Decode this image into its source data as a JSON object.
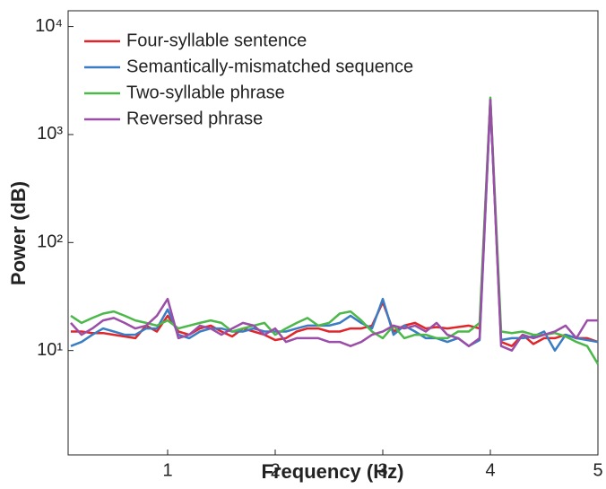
{
  "chart_data": {
    "type": "line",
    "xlabel": "Frequency (Hz)",
    "ylabel": "Power (dB)",
    "x": [
      0.1,
      0.2,
      0.3,
      0.4,
      0.5,
      0.6,
      0.7,
      0.8,
      0.9,
      1.0,
      1.1,
      1.2,
      1.3,
      1.4,
      1.5,
      1.6,
      1.7,
      1.8,
      1.9,
      2.0,
      2.1,
      2.2,
      2.3,
      2.4,
      2.5,
      2.6,
      2.7,
      2.8,
      2.9,
      3.0,
      3.1,
      3.2,
      3.3,
      3.4,
      3.5,
      3.6,
      3.7,
      3.8,
      3.9,
      4.0,
      4.1,
      4.2,
      4.3,
      4.4,
      4.5,
      4.6,
      4.7,
      4.8,
      4.9,
      5.0
    ],
    "series": [
      {
        "name": "Four-syllable sentence",
        "color": "#e0262a",
        "values": [
          15,
          15,
          14.5,
          14.5,
          14,
          13.5,
          13,
          17,
          15,
          21,
          15,
          14,
          16,
          17,
          15,
          13.5,
          16,
          15,
          14,
          12.5,
          13,
          15,
          16,
          16,
          15,
          15,
          16,
          16,
          17,
          28,
          15,
          17,
          18,
          16,
          16.5,
          16,
          16.5,
          17,
          16,
          2100,
          12,
          11,
          14,
          11.5,
          13,
          13,
          14,
          13,
          13,
          12
        ]
      },
      {
        "name": "Semantically-mismatched sequence",
        "color": "#3a7dc4",
        "values": [
          11,
          12,
          14,
          16,
          15,
          14,
          14,
          16,
          16,
          24,
          14,
          13,
          15,
          16,
          16,
          15,
          15,
          16,
          15,
          15,
          15,
          16,
          17,
          17,
          17,
          18,
          21,
          18,
          16,
          30,
          14,
          17,
          15,
          13,
          13,
          12,
          13,
          11,
          12.5,
          2000,
          12.5,
          13,
          13,
          13.5,
          15,
          10,
          14,
          13,
          12.5,
          12
        ]
      },
      {
        "name": "Two-syllable phrase",
        "color": "#4cb84a",
        "values": [
          21,
          18,
          20,
          22,
          23,
          21,
          19,
          18,
          17,
          19,
          16,
          17,
          18,
          19,
          18,
          15,
          16,
          17,
          18,
          14,
          16,
          18,
          20,
          17,
          18,
          22,
          23,
          19,
          15,
          13,
          17,
          13,
          14,
          14,
          13,
          13,
          15,
          15,
          18,
          2200,
          15,
          14.5,
          15,
          14,
          14,
          14.5,
          13.5,
          12,
          11,
          7.5
        ]
      },
      {
        "name": "Reversed phrase",
        "color": "#9b4ea8",
        "values": [
          18,
          14,
          16,
          19,
          20,
          18,
          16,
          17,
          21,
          30,
          13,
          14,
          17,
          16,
          14,
          16,
          18,
          17,
          14,
          16,
          12,
          13,
          13,
          13,
          12,
          12,
          11,
          12,
          14,
          15,
          17,
          16,
          17,
          15,
          18,
          14,
          13,
          11,
          13,
          2100,
          11,
          10,
          14,
          13,
          14,
          15,
          17,
          13,
          19,
          19
        ]
      }
    ],
    "xlim": [
      0.075,
      5
    ],
    "xticks": [
      1,
      2,
      3,
      4,
      5
    ],
    "ylim": [
      1.08,
      14000
    ],
    "yscale": "log",
    "yticks": [
      {
        "value": 10,
        "label": "10¹"
      },
      {
        "value": 100,
        "label": "10²"
      },
      {
        "value": 1000,
        "label": "10³"
      },
      {
        "value": 10000,
        "label": "10⁴"
      }
    ],
    "legend": "upper left"
  }
}
